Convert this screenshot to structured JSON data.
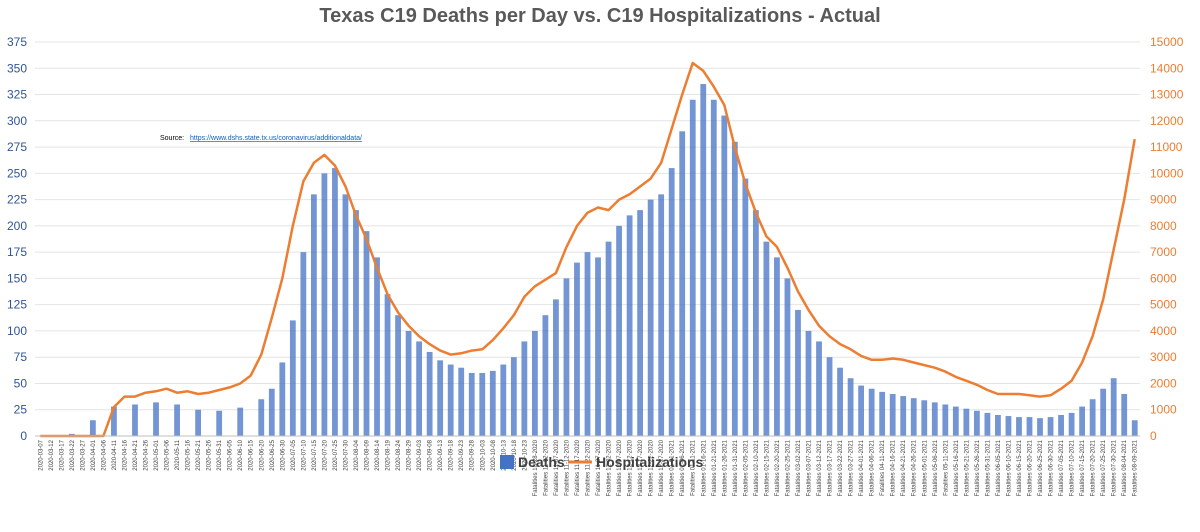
{
  "chart_data": {
    "type": "bar",
    "title": "Texas C19 Deaths per Day vs. C19 Hospitalizations - Actual",
    "source_label": "Source:",
    "source_url": "https://www.dshs.state.tx.us/coronavirus/additionaldata/",
    "y_left": {
      "min": 0,
      "max": 375,
      "ticks": [
        "0",
        "25",
        "50",
        "75",
        "100",
        "125",
        "150",
        "175",
        "200",
        "225",
        "250",
        "275",
        "300",
        "325",
        "350",
        "375"
      ]
    },
    "y_right": {
      "min": 0,
      "max": 15000,
      "ticks": [
        "0",
        "1000",
        "2000",
        "3000",
        "4000",
        "5000",
        "6000",
        "7000",
        "8000",
        "9000",
        "10000",
        "11000",
        "12000",
        "13000",
        "14000",
        "15000"
      ]
    },
    "x_tick_labels": [
      "2020-03-07",
      "2020-03-12",
      "2020-03-17",
      "2020-03-22",
      "2020-03-27",
      "2020-04-01",
      "2020-04-06",
      "2020-04-11",
      "2020-04-16",
      "2020-04-21",
      "2020-04-26",
      "2020-05-01",
      "2020-05-06",
      "2020-05-11",
      "2020-05-16",
      "2020-05-21",
      "2020-05-26",
      "2020-05-31",
      "2020-06-05",
      "2020-06-10",
      "2020-06-15",
      "2020-06-20",
      "2020-06-25",
      "2020-06-30",
      "2020-07-05",
      "2020-07-10",
      "2020-07-15",
      "2020-07-20",
      "2020-07-25",
      "2020-07-30",
      "2020-08-04",
      "2020-08-09",
      "2020-08-14",
      "2020-08-19",
      "2020-08-24",
      "2020-08-29",
      "2020-09-03",
      "2020-09-08",
      "2020-09-13",
      "2020-09-18",
      "2020-09-23",
      "2020-09-28",
      "2020-10-03",
      "2020-10-08",
      "2020-10-13",
      "2020-10-18",
      "2020-10-23",
      "Fatalities 10-28-2020",
      "Fatalities 11-02-2020",
      "Fatalities 11-07-2020",
      "Fatalities 11-12-2020",
      "Fatalities 11-17-2020",
      "Fatalities 11-22-2020",
      "Fatalities 11-27-2020",
      "Fatalities 12-02-2020",
      "Fatalities 12-07-2020",
      "Fatalities 12-12-2020",
      "Fatalities 12-17-2020",
      "Fatalities 12-22-2020",
      "Fatalities 12-27-2020",
      "Fatalities 01-01-2021",
      "Fatalities 01-06-2021",
      "Fatalities 01-11-2021",
      "Fatalities 01-16-2021",
      "Fatalities 01-21-2021",
      "Fatalities 01-26-2021",
      "Fatalities 01-31-2021",
      "Fatalities 02-05-2021",
      "Fatalities 02-10-2021",
      "Fatalities 02-15-2021",
      "Fatalities 02-20-2021",
      "Fatalities 02-25-2021",
      "Fatalities 03-02-2021",
      "Fatalities 03-07-2021",
      "Fatalities 03-12-2021",
      "Fatalities 03-17-2021",
      "Fatalities 03-22-2021",
      "Fatalities 03-27-2021",
      "Fatalities 04-01-2021",
      "Fatalities 04-06-2021",
      "Fatalities 04-11-2021",
      "Fatalities 04-16-2021",
      "Fatalities 04-21-2021",
      "Fatalities 04-26-2021",
      "Fatalities 05-01-2021",
      "Fatalities 05-06-2021",
      "Fatalities 05-11-2021",
      "Fatalities 05-16-2021",
      "Fatalities 05-21-2021",
      "Fatalities 05-26-2021",
      "Fatalities 05-31-2021",
      "Fatalities 06-05-2021",
      "Fatalities 06-10-2021",
      "Fatalities 06-15-2021",
      "Fatalities 06-20-2021",
      "Fatalities 06-25-2021",
      "Fatalities 06-30-2021",
      "Fatalities 07-05-2021",
      "Fatalities 07-10-2021",
      "Fatalities 07-15-2021",
      "Fatalities 07-20-2021",
      "Fatalities 07-25-2021",
      "Fatalities 07-30-2021",
      "Fatalities 08-04-2021",
      "Fatalities 08-09-2021"
    ],
    "series": [
      {
        "name": "Deaths",
        "color": "#4472c4",
        "axis": "left",
        "sample_points": [
          [
            "2020-03-07",
            0
          ],
          [
            "2020-03-22",
            2
          ],
          [
            "2020-04-01",
            15
          ],
          [
            "2020-04-11",
            28
          ],
          [
            "2020-04-21",
            30
          ],
          [
            "2020-05-01",
            32
          ],
          [
            "2020-05-11",
            30
          ],
          [
            "2020-05-21",
            25
          ],
          [
            "2020-05-31",
            24
          ],
          [
            "2020-06-10",
            27
          ],
          [
            "2020-06-20",
            35
          ],
          [
            "2020-06-25",
            45
          ],
          [
            "2020-06-30",
            70
          ],
          [
            "2020-07-05",
            110
          ],
          [
            "2020-07-10",
            175
          ],
          [
            "2020-07-15",
            230
          ],
          [
            "2020-07-20",
            250
          ],
          [
            "2020-07-25",
            255
          ],
          [
            "2020-07-30",
            230
          ],
          [
            "2020-08-04",
            215
          ],
          [
            "2020-08-09",
            195
          ],
          [
            "2020-08-14",
            170
          ],
          [
            "2020-08-19",
            135
          ],
          [
            "2020-08-24",
            115
          ],
          [
            "2020-08-29",
            100
          ],
          [
            "2020-09-03",
            90
          ],
          [
            "2020-09-08",
            80
          ],
          [
            "2020-09-13",
            72
          ],
          [
            "2020-09-18",
            68
          ],
          [
            "2020-09-23",
            65
          ],
          [
            "2020-09-28",
            60
          ],
          [
            "2020-10-03",
            60
          ],
          [
            "2020-10-08",
            62
          ],
          [
            "2020-10-13",
            68
          ],
          [
            "2020-10-18",
            75
          ],
          [
            "2020-10-23",
            90
          ],
          [
            "Fatalities 10-28-2020",
            100
          ],
          [
            "Fatalities 11-02-2020",
            115
          ],
          [
            "Fatalities 11-07-2020",
            130
          ],
          [
            "Fatalities 11-12-2020",
            150
          ],
          [
            "Fatalities 11-17-2020",
            165
          ],
          [
            "Fatalities 11-22-2020",
            175
          ],
          [
            "Fatalities 11-27-2020",
            170
          ],
          [
            "Fatalities 12-02-2020",
            185
          ],
          [
            "Fatalities 12-07-2020",
            200
          ],
          [
            "Fatalities 12-12-2020",
            210
          ],
          [
            "Fatalities 12-17-2020",
            215
          ],
          [
            "Fatalities 12-22-2020",
            225
          ],
          [
            "Fatalities 12-27-2020",
            230
          ],
          [
            "Fatalities 01-01-2021",
            255
          ],
          [
            "Fatalities 01-06-2021",
            290
          ],
          [
            "Fatalities 01-11-2021",
            320
          ],
          [
            "Fatalities 01-16-2021",
            335
          ],
          [
            "Fatalities 01-21-2021",
            320
          ],
          [
            "Fatalities 01-26-2021",
            305
          ],
          [
            "Fatalities 01-31-2021",
            280
          ],
          [
            "Fatalities 02-05-2021",
            245
          ],
          [
            "Fatalities 02-10-2021",
            215
          ],
          [
            "Fatalities 02-15-2021",
            185
          ],
          [
            "Fatalities 02-20-2021",
            170
          ],
          [
            "Fatalities 02-25-2021",
            150
          ],
          [
            "Fatalities 03-02-2021",
            120
          ],
          [
            "Fatalities 03-07-2021",
            100
          ],
          [
            "Fatalities 03-12-2021",
            90
          ],
          [
            "Fatalities 03-17-2021",
            75
          ],
          [
            "Fatalities 03-22-2021",
            65
          ],
          [
            "Fatalities 03-27-2021",
            55
          ],
          [
            "Fatalities 04-01-2021",
            48
          ],
          [
            "Fatalities 04-06-2021",
            45
          ],
          [
            "Fatalities 04-11-2021",
            42
          ],
          [
            "Fatalities 04-16-2021",
            40
          ],
          [
            "Fatalities 04-21-2021",
            38
          ],
          [
            "Fatalities 04-26-2021",
            36
          ],
          [
            "Fatalities 05-01-2021",
            34
          ],
          [
            "Fatalities 05-06-2021",
            32
          ],
          [
            "Fatalities 05-11-2021",
            30
          ],
          [
            "Fatalities 05-16-2021",
            28
          ],
          [
            "Fatalities 05-21-2021",
            26
          ],
          [
            "Fatalities 05-26-2021",
            24
          ],
          [
            "Fatalities 05-31-2021",
            22
          ],
          [
            "Fatalities 06-05-2021",
            20
          ],
          [
            "Fatalities 06-10-2021",
            19
          ],
          [
            "Fatalities 06-15-2021",
            18
          ],
          [
            "Fatalities 06-20-2021",
            18
          ],
          [
            "Fatalities 06-25-2021",
            17
          ],
          [
            "Fatalities 06-30-2021",
            18
          ],
          [
            "Fatalities 07-05-2021",
            20
          ],
          [
            "Fatalities 07-10-2021",
            22
          ],
          [
            "Fatalities 07-15-2021",
            28
          ],
          [
            "Fatalities 07-20-2021",
            35
          ],
          [
            "Fatalities 07-25-2021",
            45
          ],
          [
            "Fatalities 07-30-2021",
            55
          ],
          [
            "Fatalities 08-04-2021",
            40
          ],
          [
            "Fatalities 08-09-2021",
            15
          ]
        ]
      },
      {
        "name": "Hospitalizations",
        "color": "#ed7d31",
        "axis": "right",
        "sample_points": [
          [
            "2020-03-07",
            0
          ],
          [
            "2020-04-06",
            0
          ],
          [
            "2020-04-11",
            1100
          ],
          [
            "2020-04-16",
            1500
          ],
          [
            "2020-04-21",
            1500
          ],
          [
            "2020-04-26",
            1650
          ],
          [
            "2020-05-01",
            1700
          ],
          [
            "2020-05-06",
            1800
          ],
          [
            "2020-05-11",
            1650
          ],
          [
            "2020-05-16",
            1700
          ],
          [
            "2020-05-21",
            1600
          ],
          [
            "2020-05-26",
            1650
          ],
          [
            "2020-05-31",
            1750
          ],
          [
            "2020-06-05",
            1850
          ],
          [
            "2020-06-10",
            2000
          ],
          [
            "2020-06-15",
            2300
          ],
          [
            "2020-06-20",
            3100
          ],
          [
            "2020-06-25",
            4500
          ],
          [
            "2020-06-30",
            6000
          ],
          [
            "2020-07-05",
            8000
          ],
          [
            "2020-07-10",
            9700
          ],
          [
            "2020-07-15",
            10400
          ],
          [
            "2020-07-20",
            10700
          ],
          [
            "2020-07-25",
            10300
          ],
          [
            "2020-07-30",
            9500
          ],
          [
            "2020-08-04",
            8400
          ],
          [
            "2020-08-09",
            7500
          ],
          [
            "2020-08-14",
            6400
          ],
          [
            "2020-08-19",
            5400
          ],
          [
            "2020-08-24",
            4700
          ],
          [
            "2020-08-29",
            4200
          ],
          [
            "2020-09-03",
            3800
          ],
          [
            "2020-09-08",
            3500
          ],
          [
            "2020-09-13",
            3250
          ],
          [
            "2020-09-18",
            3100
          ],
          [
            "2020-09-23",
            3150
          ],
          [
            "2020-09-28",
            3250
          ],
          [
            "2020-10-03",
            3300
          ],
          [
            "2020-10-08",
            3650
          ],
          [
            "2020-10-13",
            4100
          ],
          [
            "2020-10-18",
            4600
          ],
          [
            "2020-10-23",
            5300
          ],
          [
            "Fatalities 10-28-2020",
            5700
          ],
          [
            "Fatalities 11-02-2020",
            5950
          ],
          [
            "Fatalities 11-07-2020",
            6200
          ],
          [
            "Fatalities 11-12-2020",
            7200
          ],
          [
            "Fatalities 11-17-2020",
            8000
          ],
          [
            "Fatalities 11-22-2020",
            8500
          ],
          [
            "Fatalities 11-27-2020",
            8700
          ],
          [
            "Fatalities 12-02-2020",
            8600
          ],
          [
            "Fatalities 12-07-2020",
            9000
          ],
          [
            "Fatalities 12-12-2020",
            9200
          ],
          [
            "Fatalities 12-17-2020",
            9500
          ],
          [
            "Fatalities 12-22-2020",
            9800
          ],
          [
            "Fatalities 12-27-2020",
            10400
          ],
          [
            "Fatalities 01-01-2021",
            11700
          ],
          [
            "Fatalities 01-06-2021",
            13000
          ],
          [
            "Fatalities 01-11-2021",
            14200
          ],
          [
            "Fatalities 01-16-2021",
            13900
          ],
          [
            "Fatalities 01-21-2021",
            13300
          ],
          [
            "Fatalities 01-26-2021",
            12600
          ],
          [
            "Fatalities 01-31-2021",
            11000
          ],
          [
            "Fatalities 02-05-2021",
            9600
          ],
          [
            "Fatalities 02-10-2021",
            8500
          ],
          [
            "Fatalities 02-15-2021",
            7600
          ],
          [
            "Fatalities 02-20-2021",
            7200
          ],
          [
            "Fatalities 02-25-2021",
            6400
          ],
          [
            "Fatalities 03-02-2021",
            5500
          ],
          [
            "Fatalities 03-07-2021",
            4800
          ],
          [
            "Fatalities 03-12-2021",
            4200
          ],
          [
            "Fatalities 03-17-2021",
            3800
          ],
          [
            "Fatalities 03-22-2021",
            3500
          ],
          [
            "Fatalities 03-27-2021",
            3300
          ],
          [
            "Fatalities 04-01-2021",
            3050
          ],
          [
            "Fatalities 04-06-2021",
            2900
          ],
          [
            "Fatalities 04-11-2021",
            2900
          ],
          [
            "Fatalities 04-16-2021",
            2950
          ],
          [
            "Fatalities 04-21-2021",
            2900
          ],
          [
            "Fatalities 04-26-2021",
            2800
          ],
          [
            "Fatalities 05-01-2021",
            2700
          ],
          [
            "Fatalities 05-06-2021",
            2600
          ],
          [
            "Fatalities 05-11-2021",
            2450
          ],
          [
            "Fatalities 05-16-2021",
            2250
          ],
          [
            "Fatalities 05-21-2021",
            2100
          ],
          [
            "Fatalities 05-26-2021",
            1950
          ],
          [
            "Fatalities 05-31-2021",
            1750
          ],
          [
            "Fatalities 06-05-2021",
            1600
          ],
          [
            "Fatalities 06-10-2021",
            1600
          ],
          [
            "Fatalities 06-15-2021",
            1600
          ],
          [
            "Fatalities 06-20-2021",
            1550
          ],
          [
            "Fatalities 06-25-2021",
            1500
          ],
          [
            "Fatalities 06-30-2021",
            1550
          ],
          [
            "Fatalities 07-05-2021",
            1800
          ],
          [
            "Fatalities 07-10-2021",
            2100
          ],
          [
            "Fatalities 07-15-2021",
            2800
          ],
          [
            "Fatalities 07-20-2021",
            3800
          ],
          [
            "Fatalities 07-25-2021",
            5200
          ],
          [
            "Fatalities 07-30-2021",
            7100
          ],
          [
            "Fatalities 08-04-2021",
            9000
          ],
          [
            "Fatalities 08-09-2021",
            11300
          ]
        ]
      }
    ],
    "legend": {
      "position": "bottom",
      "entries": [
        "Deaths",
        "Hospitalizations"
      ]
    },
    "grid": true
  }
}
